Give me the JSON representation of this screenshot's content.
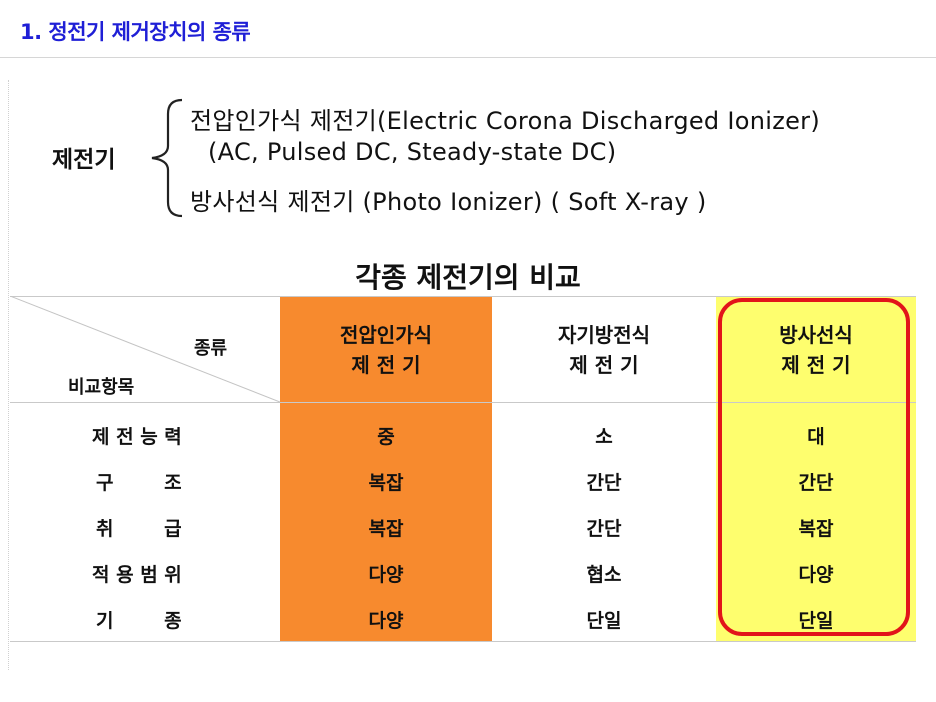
{
  "section": {
    "heading": "1. 정전기 제거장치의 종류"
  },
  "classification": {
    "label": "제전기",
    "lines": [
      "전압인가식 제전기(Electric Corona Discharged Ionizer)",
      "(AC, Pulsed DC, Steady-state DC)",
      "방사선식 제전기 (Photo Ionizer) ( Soft X-ray )"
    ]
  },
  "comparison": {
    "title": "각종 제전기의 비교",
    "corner_top": "종류",
    "corner_bottom": "비교항목",
    "columns": [
      {
        "line1": "전압인가식",
        "line2": "제 전 기",
        "color": "#f78a2e"
      },
      {
        "line1": "자기방전식",
        "line2": "제 전 기",
        "color": "#ffffff"
      },
      {
        "line1": "방사선식",
        "line2": "제 전 기",
        "color": "#fefe6e"
      }
    ],
    "highlight_color": "#e2141a",
    "rows": [
      {
        "label": "제 전 능 력",
        "values": [
          "중",
          "소",
          "대"
        ]
      },
      {
        "label": "구 조",
        "values": [
          "복잡",
          "간단",
          "간단"
        ]
      },
      {
        "label": "취 급",
        "values": [
          "복잡",
          "간단",
          "복잡"
        ]
      },
      {
        "label": "적 용 범 위",
        "values": [
          "다양",
          "협소",
          "다양"
        ]
      },
      {
        "label": "기 종",
        "values": [
          "다양",
          "단일",
          "단일"
        ]
      }
    ]
  }
}
